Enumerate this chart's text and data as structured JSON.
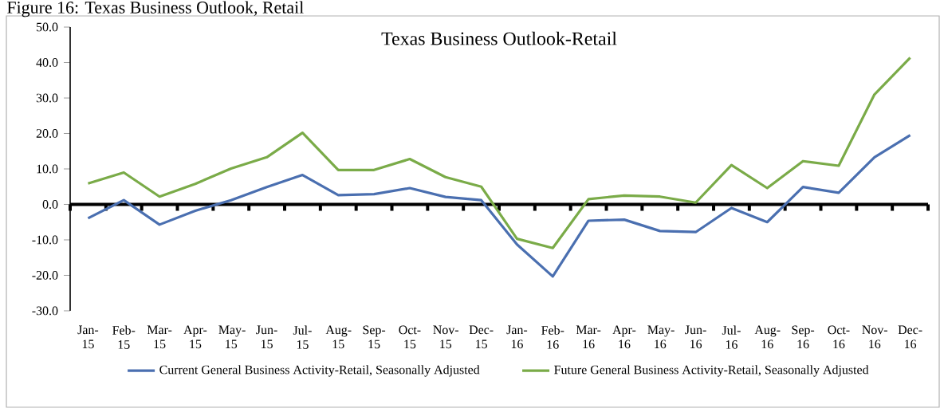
{
  "chart_data": {
    "type": "line",
    "title": "Texas Business Outlook-Retail",
    "annotations": [
      "Figure 16: Texas Business Outlook, Retail"
    ],
    "categories": [
      "Jan-15",
      "Feb-15",
      "Mar-15",
      "Apr-15",
      "May-15",
      "Jun-15",
      "Jul-15",
      "Aug-15",
      "Sep-15",
      "Oct-15",
      "Nov-15",
      "Dec-15",
      "Jan-16",
      "Feb-16",
      "Mar-16",
      "Apr-16",
      "May-16",
      "Jun-16",
      "Jul-16",
      "Aug-16",
      "Sep-16",
      "Oct-16",
      "Nov-16",
      "Dec-16"
    ],
    "series": [
      {
        "name": "Current General Business Activity-Retail, Seasonally Adjusted",
        "color": "#4a6fb0",
        "values": [
          -3.9,
          1.2,
          -5.7,
          -1.8,
          1.2,
          4.9,
          8.3,
          2.6,
          2.9,
          4.6,
          2.1,
          1.2,
          -11.3,
          -20.3,
          -4.6,
          -4.3,
          -7.5,
          -7.8,
          -1.0,
          -5.0,
          4.9,
          3.3,
          13.3,
          19.5
        ]
      },
      {
        "name": "Future General Business Activity-Retail, Seasonally Adjusted",
        "color": "#7aab48",
        "values": [
          5.9,
          9.0,
          2.2,
          5.8,
          10.1,
          13.3,
          20.2,
          9.7,
          9.7,
          12.8,
          7.7,
          5.0,
          -9.7,
          -12.3,
          1.5,
          2.5,
          2.2,
          0.5,
          11.1,
          4.6,
          12.2,
          10.9,
          31.0,
          41.4
        ]
      }
    ],
    "ylim": [
      -30,
      50
    ],
    "yticks": [
      {
        "value": -30,
        "label": "-30.0"
      },
      {
        "value": -20,
        "label": "-20.0"
      },
      {
        "value": -10,
        "label": "-10.0"
      },
      {
        "value": 0,
        "label": "0.0"
      },
      {
        "value": 10,
        "label": "10.0"
      },
      {
        "value": 20,
        "label": "20.0"
      },
      {
        "value": 30,
        "label": "30.0"
      },
      {
        "value": 40,
        "label": "40.0"
      },
      {
        "value": 50,
        "label": "50.0"
      }
    ],
    "legend": "bottom",
    "marker": "none",
    "line_style": "solid"
  }
}
